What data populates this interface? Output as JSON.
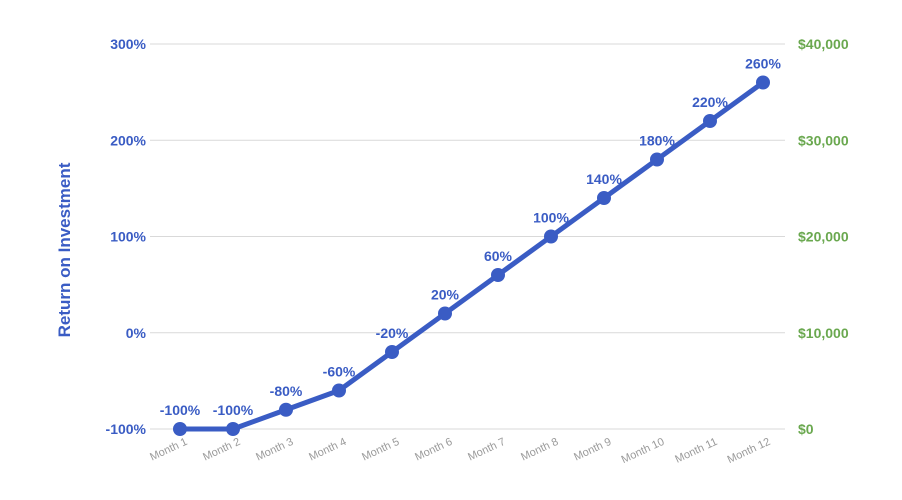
{
  "chart_data": {
    "type": "line",
    "title": "",
    "xlabel": "",
    "ylabel": "Return on Investment",
    "categories": [
      "Month 1",
      "Month 2",
      "Month 3",
      "Month 4",
      "Month 5",
      "Month 6",
      "Month 7",
      "Month 8",
      "Month 9",
      "Month 10",
      "Month 11",
      "Month 12"
    ],
    "series": [
      {
        "values": [
          -100,
          -100,
          -80,
          -60,
          -20,
          20,
          60,
          100,
          140,
          180,
          220,
          260
        ],
        "data_labels": [
          "-100%",
          "-100%",
          "-80%",
          "-60%",
          "-20%",
          "20%",
          "60%",
          "100%",
          "140%",
          "180%",
          "220%",
          "260%"
        ],
        "color": "#3a5cc4"
      }
    ],
    "ylim": [
      -100,
      300
    ],
    "y_ticks": [
      -100,
      0,
      100,
      200,
      300
    ],
    "y_tick_labels": [
      "-100%",
      "0%",
      "100%",
      "200%",
      "300%"
    ],
    "y2lim": [
      0,
      40000
    ],
    "y2_tick_labels": [
      "$0",
      "$10,000",
      "$20,000",
      "$30,000",
      "$40,000"
    ],
    "grid": true,
    "legend": "none",
    "colors": {
      "line": "#3a5cc4",
      "left_axis": "#3a5cc4",
      "right_axis": "#6aa84f",
      "x_axis": "#9a9a9a",
      "grid": "#d9d9d9"
    }
  }
}
